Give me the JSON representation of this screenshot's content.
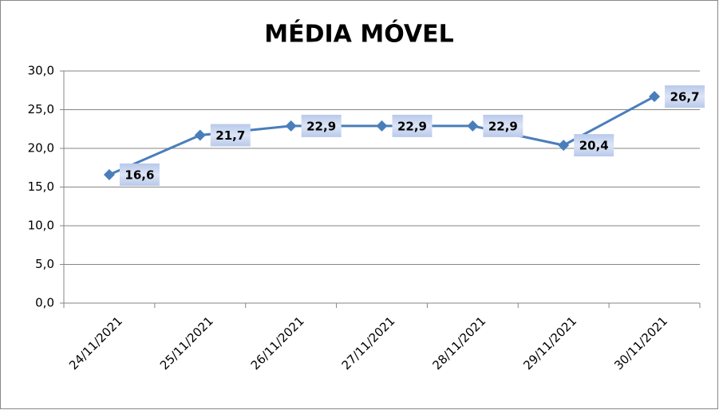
{
  "chart_data": {
    "type": "line",
    "title": "MÉDIA MÓVEL",
    "categories": [
      "24/11/2021",
      "25/11/2021",
      "26/11/2021",
      "27/11/2021",
      "28/11/2021",
      "29/11/2021",
      "30/11/2021"
    ],
    "series": [
      {
        "color": "#4a7ebb",
        "values": [
          16.6,
          21.7,
          22.9,
          22.9,
          22.9,
          20.4,
          26.7
        ],
        "value_labels": [
          "16,6",
          "21,7",
          "22,9",
          "22,9",
          "22,9",
          "20,4",
          "26,7"
        ]
      }
    ],
    "ylim": [
      0,
      30
    ],
    "yticks": [
      {
        "value": 0,
        "label": "0,0"
      },
      {
        "value": 5,
        "label": "5,0"
      },
      {
        "value": 10,
        "label": "10,0"
      },
      {
        "value": 15,
        "label": "15,0"
      },
      {
        "value": 20,
        "label": "20,0"
      },
      {
        "value": 25,
        "label": "25,0"
      },
      {
        "value": 30,
        "label": "30,0"
      }
    ],
    "grid": true
  }
}
